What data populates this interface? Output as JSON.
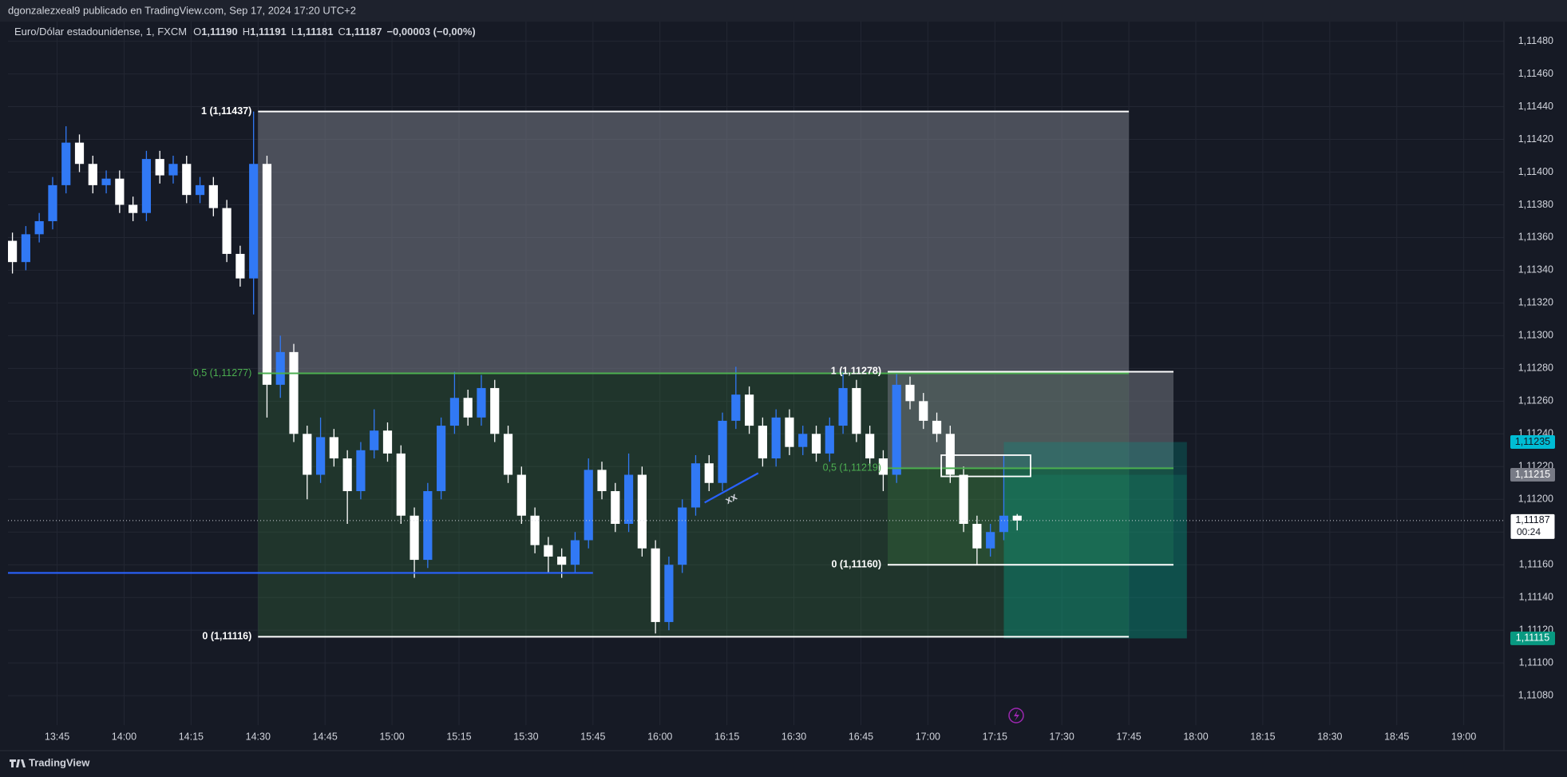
{
  "header": {
    "attribution": "dgonzalezxeal9 publicado en TradingView.com, Sep 17, 2024 17:20 UTC+2",
    "symbol": "Euro/Dólar estadounidense, 1, FXCM",
    "ohlc": [
      {
        "key": "O",
        "value": "1,11190"
      },
      {
        "key": "H",
        "value": "1,11191"
      },
      {
        "key": "L",
        "value": "1,11181"
      },
      {
        "key": "C",
        "value": "1,11187"
      }
    ],
    "change": "−0,00003 (−0,00%)"
  },
  "chart_data": {
    "type": "candlestick",
    "bull_color": "#3179f5",
    "bear_color": "#ffffff",
    "x": [
      "13:35",
      "13:38",
      "13:41",
      "13:44",
      "13:47",
      "13:50",
      "13:53",
      "13:56",
      "13:59",
      "14:02",
      "14:05",
      "14:08",
      "14:11",
      "14:14",
      "14:17",
      "14:20",
      "14:23",
      "14:26",
      "14:29",
      "14:32",
      "14:35",
      "14:38",
      "14:41",
      "14:44",
      "14:47",
      "14:50",
      "14:53",
      "14:56",
      "14:59",
      "15:02",
      "15:05",
      "15:08",
      "15:11",
      "15:14",
      "15:17",
      "15:20",
      "15:23",
      "15:26",
      "15:29",
      "15:32",
      "15:35",
      "15:38",
      "15:41",
      "15:44",
      "15:47",
      "15:50",
      "15:53",
      "15:56",
      "15:59",
      "16:02",
      "16:05",
      "16:08",
      "16:11",
      "16:14",
      "16:17",
      "16:20",
      "16:23",
      "16:26",
      "16:29",
      "16:32",
      "16:35",
      "16:38",
      "16:41",
      "16:44",
      "16:47",
      "16:50",
      "16:53",
      "16:56",
      "16:59",
      "17:02",
      "17:05",
      "17:08",
      "17:11",
      "17:14",
      "17:17",
      "17:20"
    ],
    "ohlc": [
      [
        1.11358,
        1.11363,
        1.11338,
        1.11345
      ],
      [
        1.11345,
        1.11367,
        1.1134,
        1.11362
      ],
      [
        1.11362,
        1.11375,
        1.11357,
        1.1137
      ],
      [
        1.1137,
        1.11397,
        1.11365,
        1.11392
      ],
      [
        1.11392,
        1.11428,
        1.11387,
        1.11418
      ],
      [
        1.11418,
        1.11423,
        1.114,
        1.11405
      ],
      [
        1.11405,
        1.1141,
        1.11387,
        1.11392
      ],
      [
        1.11392,
        1.11401,
        1.11387,
        1.11396
      ],
      [
        1.11396,
        1.11401,
        1.11375,
        1.1138
      ],
      [
        1.1138,
        1.11385,
        1.1137,
        1.11375
      ],
      [
        1.11375,
        1.11413,
        1.1137,
        1.11408
      ],
      [
        1.11408,
        1.11413,
        1.11393,
        1.11398
      ],
      [
        1.11398,
        1.1141,
        1.11393,
        1.11405
      ],
      [
        1.11405,
        1.1141,
        1.11381,
        1.11386
      ],
      [
        1.11386,
        1.11397,
        1.11381,
        1.11392
      ],
      [
        1.11392,
        1.11397,
        1.11373,
        1.11378
      ],
      [
        1.11378,
        1.11383,
        1.11345,
        1.1135
      ],
      [
        1.1135,
        1.11355,
        1.1133,
        1.11335
      ],
      [
        1.11335,
        1.11437,
        1.11313,
        1.11405
      ],
      [
        1.11405,
        1.1141,
        1.1125,
        1.1127
      ],
      [
        1.1127,
        1.113,
        1.11262,
        1.1129
      ],
      [
        1.1129,
        1.11295,
        1.11235,
        1.1124
      ],
      [
        1.1124,
        1.11245,
        1.112,
        1.11215
      ],
      [
        1.11215,
        1.1125,
        1.1121,
        1.11238
      ],
      [
        1.11238,
        1.11243,
        1.1122,
        1.11225
      ],
      [
        1.11225,
        1.1123,
        1.11185,
        1.11205
      ],
      [
        1.11205,
        1.11235,
        1.112,
        1.1123
      ],
      [
        1.1123,
        1.11255,
        1.11225,
        1.11242
      ],
      [
        1.11242,
        1.11247,
        1.11223,
        1.11228
      ],
      [
        1.11228,
        1.11233,
        1.11185,
        1.1119
      ],
      [
        1.1119,
        1.11195,
        1.11152,
        1.11163
      ],
      [
        1.11163,
        1.1121,
        1.11158,
        1.11205
      ],
      [
        1.11205,
        1.1125,
        1.112,
        1.11245
      ],
      [
        1.11245,
        1.11278,
        1.1124,
        1.11262
      ],
      [
        1.11262,
        1.11267,
        1.11245,
        1.1125
      ],
      [
        1.1125,
        1.11276,
        1.11245,
        1.11268
      ],
      [
        1.11268,
        1.11273,
        1.11235,
        1.1124
      ],
      [
        1.1124,
        1.11245,
        1.1121,
        1.11215
      ],
      [
        1.11215,
        1.1122,
        1.11185,
        1.1119
      ],
      [
        1.1119,
        1.11195,
        1.11167,
        1.11172
      ],
      [
        1.11172,
        1.11177,
        1.11155,
        1.11165
      ],
      [
        1.11165,
        1.1117,
        1.11152,
        1.1116
      ],
      [
        1.1116,
        1.1118,
        1.11155,
        1.11175
      ],
      [
        1.11175,
        1.11225,
        1.1117,
        1.11218
      ],
      [
        1.11218,
        1.11223,
        1.112,
        1.11205
      ],
      [
        1.11205,
        1.1121,
        1.1118,
        1.11185
      ],
      [
        1.11185,
        1.11228,
        1.1118,
        1.11215
      ],
      [
        1.11215,
        1.1122,
        1.11165,
        1.1117
      ],
      [
        1.1117,
        1.11175,
        1.11118,
        1.11125
      ],
      [
        1.11125,
        1.11165,
        1.1112,
        1.1116
      ],
      [
        1.1116,
        1.112,
        1.11155,
        1.11195
      ],
      [
        1.11195,
        1.11227,
        1.1119,
        1.11222
      ],
      [
        1.11222,
        1.11227,
        1.11205,
        1.1121
      ],
      [
        1.1121,
        1.11253,
        1.11205,
        1.11248
      ],
      [
        1.11248,
        1.11281,
        1.11243,
        1.11264
      ],
      [
        1.11264,
        1.11269,
        1.1124,
        1.11245
      ],
      [
        1.11245,
        1.1125,
        1.1122,
        1.11225
      ],
      [
        1.11225,
        1.11255,
        1.1122,
        1.1125
      ],
      [
        1.1125,
        1.11255,
        1.11227,
        1.11232
      ],
      [
        1.11232,
        1.11245,
        1.11227,
        1.1124
      ],
      [
        1.1124,
        1.11245,
        1.11223,
        1.11228
      ],
      [
        1.11228,
        1.1125,
        1.11223,
        1.11245
      ],
      [
        1.11245,
        1.11278,
        1.1124,
        1.11268
      ],
      [
        1.11268,
        1.11273,
        1.11235,
        1.1124
      ],
      [
        1.1124,
        1.11245,
        1.1122,
        1.11225
      ],
      [
        1.11225,
        1.1123,
        1.11205,
        1.11215
      ],
      [
        1.11215,
        1.11278,
        1.1121,
        1.1127
      ],
      [
        1.1127,
        1.11275,
        1.11255,
        1.1126
      ],
      [
        1.1126,
        1.11265,
        1.11243,
        1.11248
      ],
      [
        1.11248,
        1.11253,
        1.11235,
        1.1124
      ],
      [
        1.1124,
        1.11245,
        1.1121,
        1.11215
      ],
      [
        1.11215,
        1.1122,
        1.1118,
        1.11185
      ],
      [
        1.11185,
        1.1119,
        1.1116,
        1.1117
      ],
      [
        1.1117,
        1.11185,
        1.11165,
        1.1118
      ],
      [
        1.1118,
        1.11227,
        1.11175,
        1.1119
      ],
      [
        1.1119,
        1.11191,
        1.11181,
        1.11187
      ]
    ],
    "xlim": [
      "13:34",
      "19:09"
    ],
    "ylim": [
      1.11062,
      1.11492
    ],
    "xticks": [
      "13:45",
      "14:00",
      "14:15",
      "14:30",
      "14:45",
      "15:00",
      "15:15",
      "15:30",
      "15:45",
      "16:00",
      "16:15",
      "16:30",
      "16:45",
      "17:00",
      "17:15",
      "17:30",
      "17:45",
      "18:00",
      "18:15",
      "18:30",
      "18:45",
      "19:00"
    ],
    "yticks": [
      {
        "value": 1.1108,
        "label": "1,11080"
      },
      {
        "value": 1.111,
        "label": "1,11100"
      },
      {
        "value": 1.1112,
        "label": "1,11120"
      },
      {
        "value": 1.1114,
        "label": "1,11140"
      },
      {
        "value": 1.1116,
        "label": "1,11160"
      },
      {
        "value": 1.1118,
        "label": "1,11180"
      },
      {
        "value": 1.112,
        "label": "1,11200"
      },
      {
        "value": 1.1122,
        "label": "1,11220"
      },
      {
        "value": 1.1124,
        "label": "1,11240"
      },
      {
        "value": 1.1126,
        "label": "1,11260"
      },
      {
        "value": 1.1128,
        "label": "1,11280"
      },
      {
        "value": 1.113,
        "label": "1,11300"
      },
      {
        "value": 1.1132,
        "label": "1,11320"
      },
      {
        "value": 1.1134,
        "label": "1,11340"
      },
      {
        "value": 1.1136,
        "label": "1,11360"
      },
      {
        "value": 1.1138,
        "label": "1,11380"
      },
      {
        "value": 1.114,
        "label": "1,11400"
      },
      {
        "value": 1.1142,
        "label": "1,11420"
      },
      {
        "value": 1.1144,
        "label": "1,11440"
      },
      {
        "value": 1.1146,
        "label": "1,11460"
      },
      {
        "value": 1.1148,
        "label": "1,11480"
      }
    ],
    "grid": true,
    "boxes": [
      {
        "x": [
          "17:17",
          "17:58"
        ],
        "y": [
          1.11235,
          1.11215
        ],
        "color": "rgba(0,150,136,0.28)"
      },
      {
        "x": [
          "17:17",
          "17:58"
        ],
        "y": [
          1.11215,
          1.11115
        ],
        "color": "rgba(8,153,129,0.42)"
      }
    ],
    "fibs": [
      {
        "x": [
          "14:30",
          "17:45"
        ],
        "zone_colors": [
          "rgba(120,123,134,0.55)",
          "rgba(76,175,80,0.18)"
        ],
        "levels": [
          {
            "value": 1.11437,
            "label": "1 (1,11437)",
            "color": "#ffffff"
          },
          {
            "value": 1.11277,
            "label": "0,5 (1,11277)",
            "color": "#4caf50"
          },
          {
            "value": 1.11116,
            "label": "0 (1,11116)",
            "color": "#ffffff"
          }
        ]
      },
      {
        "x": [
          "16:51",
          "17:55"
        ],
        "zone_colors": [
          "rgba(120,123,134,0.5)",
          "rgba(76,175,80,0.18)"
        ],
        "levels": [
          {
            "value": 1.11278,
            "label": "1 (1,11278)",
            "color": "#ffffff"
          },
          {
            "value": 1.11219,
            "label": "0,5 (1,11219)",
            "color": "#4caf50"
          },
          {
            "value": 1.1116,
            "label": "0 (1,11160)",
            "color": "#ffffff"
          }
        ]
      }
    ],
    "lines": [
      {
        "x": [
          "13:34",
          "15:45"
        ],
        "y": [
          1.11155,
          1.11155
        ],
        "color": "#2962ff"
      },
      {
        "x": [
          "16:10",
          "16:22"
        ],
        "y": [
          1.11198,
          1.11216
        ],
        "color": "#2962ff",
        "label": "xx"
      }
    ],
    "rects": [
      {
        "x": [
          "17:03",
          "17:23"
        ],
        "y": [
          1.11227,
          1.11214
        ],
        "color": "#ffffff"
      }
    ],
    "price_labels": [
      {
        "value": 1.11235,
        "label": "1,11235",
        "color": "#00bcd4",
        "text_color": "#131722"
      },
      {
        "value": 1.11215,
        "label": "1,11215",
        "color": "#787b86",
        "text_color": "#ffffff"
      },
      {
        "value": 1.11187,
        "label": "1,11187",
        "color": "#ffffff",
        "text_color": "#131722",
        "countdown": "00:24"
      },
      {
        "value": 1.11115,
        "label": "1,11115",
        "color": "#089981",
        "text_color": "#ffffff"
      }
    ],
    "last_price": 1.11187
  },
  "footer": {
    "brand": "TradingView"
  }
}
